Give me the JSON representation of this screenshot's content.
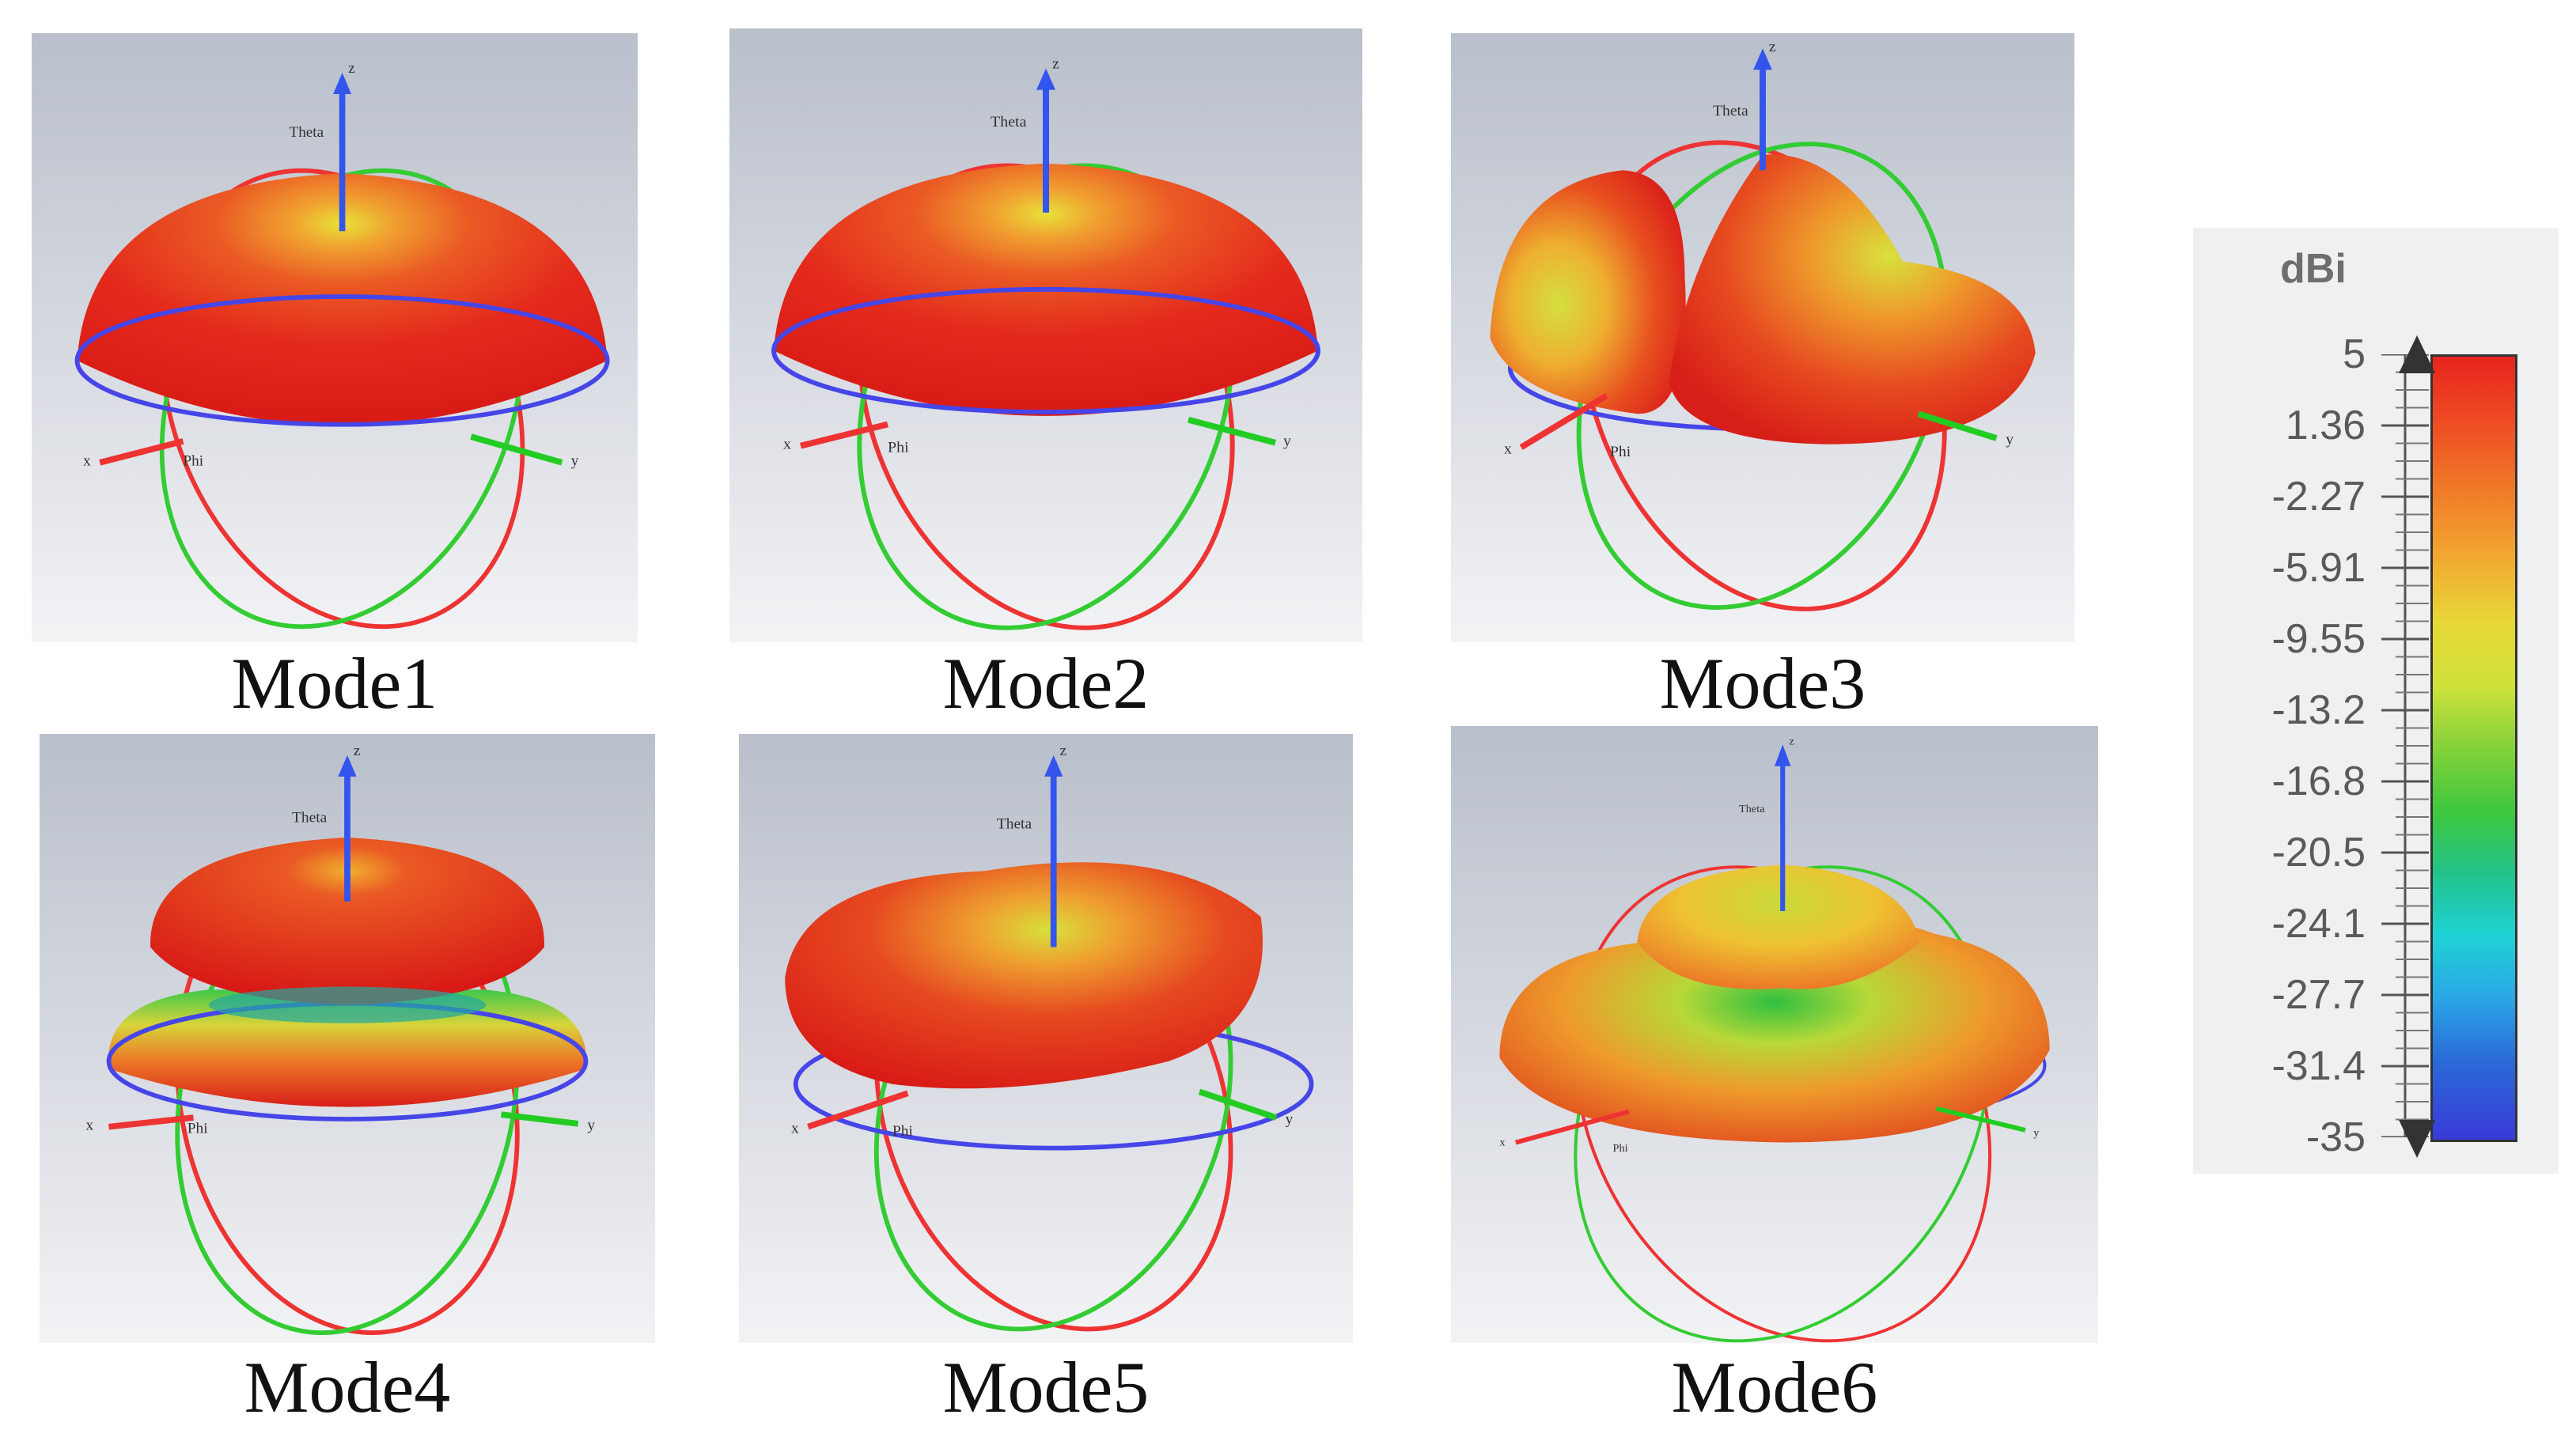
{
  "panels": [
    {
      "caption": "Mode1",
      "axes": {
        "z": "z",
        "theta": "Theta",
        "x": "x",
        "phi": "Phi",
        "y": "y"
      }
    },
    {
      "caption": "Mode2",
      "axes": {
        "z": "z",
        "theta": "Theta",
        "x": "x",
        "phi": "Phi",
        "y": "y"
      }
    },
    {
      "caption": "Mode3",
      "axes": {
        "z": "z",
        "theta": "Theta",
        "x": "x",
        "phi": "Phi",
        "y": "y"
      }
    },
    {
      "caption": "Mode4",
      "axes": {
        "z": "z",
        "theta": "Theta",
        "x": "x",
        "phi": "Phi",
        "y": "y"
      }
    },
    {
      "caption": "Mode5",
      "axes": {
        "z": "z",
        "theta": "Theta",
        "x": "x",
        "phi": "Phi",
        "y": "y"
      }
    },
    {
      "caption": "Mode6",
      "axes": {
        "z": "z",
        "theta": "Theta",
        "x": "x",
        "phi": "Phi",
        "y": "y"
      }
    }
  ],
  "legend": {
    "unit": "dBi",
    "ticks": [
      "5",
      "1.36",
      "-2.27",
      "-5.91",
      "-9.55",
      "-13.2",
      "-16.8",
      "-20.5",
      "-24.1",
      "-27.7",
      "-31.4",
      "-35"
    ],
    "max_color": "#e8241e",
    "min_color": "#3a3ad8"
  }
}
